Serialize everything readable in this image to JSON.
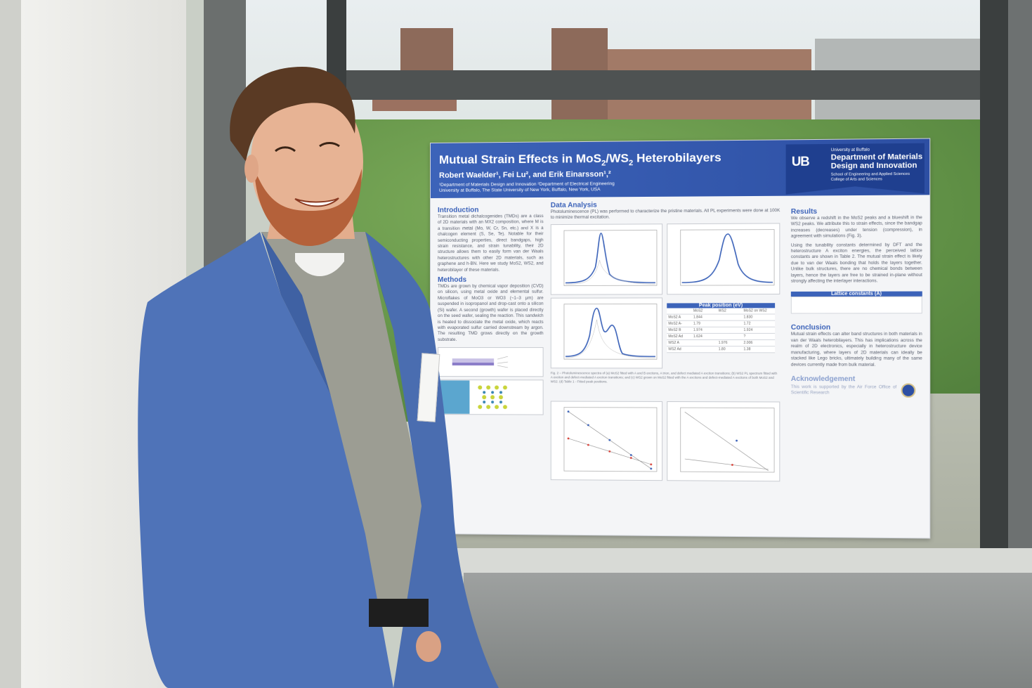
{
  "poster": {
    "title_pre": "Mutual Strain Effects in MoS",
    "title_sub1": "2",
    "title_mid": "/WS",
    "title_sub2": "2",
    "title_post": " Heterobilayers",
    "authors": "Robert Waelder¹, Fei Lu², and Erik Einarsson¹,²",
    "affiliation_1": "¹Department of Materials Design and Innovation   ²Department of Electrical Engineering",
    "affiliation_2": "University at Buffalo, The State University of New York, Buffalo, New York, USA",
    "dept": {
      "logo": "UB",
      "university": "University at Buffalo",
      "name_line1": "Department of Materials",
      "name_line2": "Design and Innovation",
      "school_line1": "School of Engineering and Applied Sciences",
      "school_line2": "College of Arts and Sciences"
    },
    "intro": {
      "heading": "Introduction",
      "text": "Transition metal dichalcogenides (TMDs) are a class of 2D materials with an MX2 composition, where M is a transition metal (Mo, W, Cr, Sn, etc.) and X is a chalcogen element (S, Se, Te). Notable for their semiconducting properties, direct bandgaps, high strain resistance, and strain tunability, their 2D structure allows them to easily form van der Waals heterostructures with other 2D materials, such as graphene and h-BN. Here we study MoS2, WS2, and heterobilayer of these materials."
    },
    "methods": {
      "heading": "Methods",
      "text": "TMDs are grown by chemical vapor deposition (CVD) on silicon, using metal oxide and elemental sulfur. Microflakes of MoO3 or WO3 (~1–3 μm) are suspended in isopropanol and drop-cast onto a silicon (Si) wafer. A second (growth) wafer is placed directly on the seed wafer, sealing the reaction. This sandwich is heated to dissociate the metal oxide, which reacts with evaporated sulfur carried downstream by argon. The resulting TMD grows directly on the growth substrate."
    },
    "data_analysis": {
      "heading": "Data Analysis",
      "text": "Photoluminescence (PL) was performed to characterize the pristine materials. All PL experiments were done at 100K to minimize thermal excitation."
    },
    "peak_table": {
      "title": "Peak position (eV)",
      "columns": [
        "",
        "MoS2",
        "WS2",
        "MoS2 on WS2"
      ],
      "rows": [
        [
          "MoS2 A",
          "1.844",
          "",
          "1.830"
        ],
        [
          "MoS2 A-",
          "1.79",
          "",
          "1.72"
        ],
        [
          "MoS2 B",
          "1.974",
          "",
          "1.924"
        ],
        [
          "MoS2 Ad",
          "1.624",
          "",
          "?"
        ],
        [
          "WS2 A",
          "",
          "1.976",
          "2.006"
        ],
        [
          "WS2 Ad",
          "",
          "1.80",
          "1.38"
        ]
      ]
    },
    "results": {
      "heading": "Results",
      "text1": "We observe a redshift in the MoS2 peaks and a blueshift in the WS2 peaks. We attribute this to strain effects, since the bandgap increases (decreases) under tension (compression), in agreement with simulations (Fig. 3).",
      "text2": "Using the tunability constants determined by DFT and the heterostructure A exciton energies, the perceived lattice constants are shown in Table 2. The mutual strain effect is likely due to van der Waals bonding that holds the layers together. Unlike bulk structures, there are no chemical bonds between layers, hence the layers are free to be strained in-plane without strongly affecting the interlayer interactions."
    },
    "lattice_table": {
      "title": "Lattice constants (Å)"
    },
    "conclusion": {
      "heading": "Conclusion",
      "text": "Mutual strain effects can alter band structures in both materials in van der Waals heterobilayers. This has implications across the realm of 2D electronics, especially in heterostructure device manufacturing, where layers of 2D materials can ideally be stacked like Lego bricks, ultimately building many of the same devices currently made from bulk material."
    },
    "acknowledgement": {
      "heading": "Acknowledgement",
      "text": "This work is supported by the Air Force Office of Scientific Research"
    }
  },
  "colors": {
    "poster_blue": "#3c63b9",
    "jacket": "#4f73b8"
  }
}
